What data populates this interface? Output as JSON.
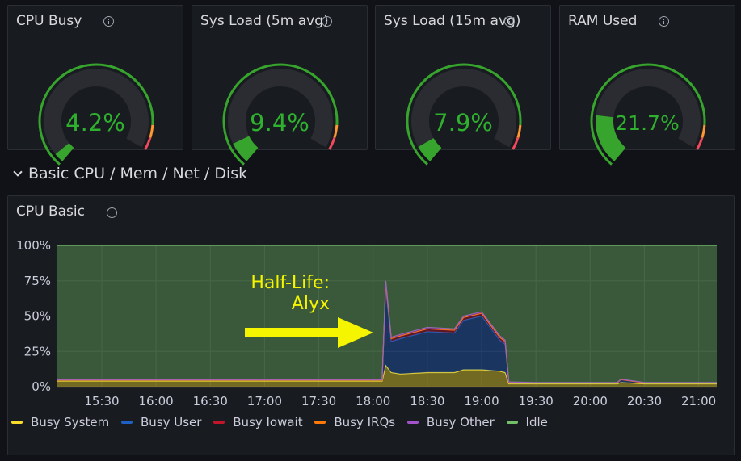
{
  "gauges": [
    {
      "title": "CPU Busy",
      "value_text": "4.2%",
      "value": 4.2
    },
    {
      "title": "Sys Load (5m avg)",
      "value_text": "9.4%",
      "value": 9.4
    },
    {
      "title": "Sys Load (15m avg)",
      "value_text": "7.9%",
      "value": 7.9
    },
    {
      "title": "RAM Used",
      "value_text": "21.7%",
      "value": 21.7
    }
  ],
  "gauge_colors": {
    "value": "#37a52d",
    "track": "#2a2c31",
    "thresholds": [
      "#37a52d",
      "#ff9830",
      "#f2495c"
    ]
  },
  "row": {
    "title": "Basic CPU / Mem / Net / Disk"
  },
  "cpu_panel": {
    "title": "CPU Basic"
  },
  "annotation": {
    "line1": "Half-Life:",
    "line2": "Alyx"
  },
  "chart_data": {
    "type": "area",
    "title": "CPU Basic",
    "stacked": true,
    "x_unit": "time",
    "x": [
      "15:05",
      "15:30",
      "16:00",
      "16:30",
      "17:00",
      "17:30",
      "18:00",
      "18:05",
      "18:07",
      "18:10",
      "18:15",
      "18:30",
      "18:45",
      "18:50",
      "19:00",
      "19:10",
      "19:13",
      "19:15",
      "19:30",
      "20:00",
      "20:15",
      "20:17",
      "20:30",
      "21:00",
      "21:10"
    ],
    "xticks": [
      "15:30",
      "16:00",
      "16:30",
      "17:00",
      "17:30",
      "18:00",
      "18:30",
      "19:00",
      "19:30",
      "20:00",
      "20:30",
      "21:00"
    ],
    "yticks": [
      "0%",
      "25%",
      "50%",
      "75%",
      "100%"
    ],
    "ylim": [
      0,
      100
    ],
    "grid": true,
    "legend_position": "bottom",
    "series": [
      {
        "name": "Busy System",
        "color": "#fade2a",
        "values": [
          4,
          4,
          4,
          4,
          4,
          4,
          4,
          4,
          15,
          10,
          9,
          10,
          10,
          12,
          12,
          11,
          10,
          2,
          2,
          2,
          2,
          3,
          2,
          2,
          2
        ]
      },
      {
        "name": "Busy User",
        "color": "#1f60c4",
        "values": [
          0.6,
          0.6,
          0.6,
          0.6,
          0.6,
          0.6,
          0.6,
          0.6,
          55,
          22,
          25,
          29,
          28,
          35,
          38,
          22,
          20,
          1,
          0.6,
          0.6,
          0.6,
          2,
          0.6,
          0.6,
          0.6
        ]
      },
      {
        "name": "Busy Iowait",
        "color": "#c4162a",
        "values": [
          0.1,
          0.1,
          0.1,
          0.1,
          0.1,
          0.1,
          0.1,
          0.1,
          3,
          2,
          2,
          2,
          2,
          2,
          2,
          2,
          2,
          0.1,
          0.1,
          0.1,
          0.1,
          0.1,
          0.1,
          0.1,
          0.1
        ]
      },
      {
        "name": "Busy IRQs",
        "color": "#ff780a",
        "values": [
          0,
          0,
          0,
          0,
          0,
          0,
          0,
          0,
          0,
          0,
          0,
          0,
          0,
          0,
          0,
          0,
          0,
          0,
          0,
          0,
          0,
          0,
          0,
          0,
          0
        ]
      },
      {
        "name": "Busy Other",
        "color": "#a352cc",
        "values": [
          0.3,
          0.3,
          0.3,
          0.3,
          0.3,
          0.3,
          0.3,
          0.3,
          2,
          1,
          1,
          1,
          1,
          1,
          1,
          1,
          1,
          0.3,
          0.3,
          0.3,
          0.3,
          0.3,
          0.3,
          0.3,
          0.3
        ]
      },
      {
        "name": "Idle",
        "color": "#73bf69",
        "values": [
          95,
          95,
          95,
          95,
          95,
          95,
          95,
          95,
          25,
          65,
          63,
          58,
          59,
          50,
          47,
          64,
          67,
          96.6,
          97,
          97,
          97,
          94.6,
          97,
          97,
          97
        ]
      }
    ]
  }
}
